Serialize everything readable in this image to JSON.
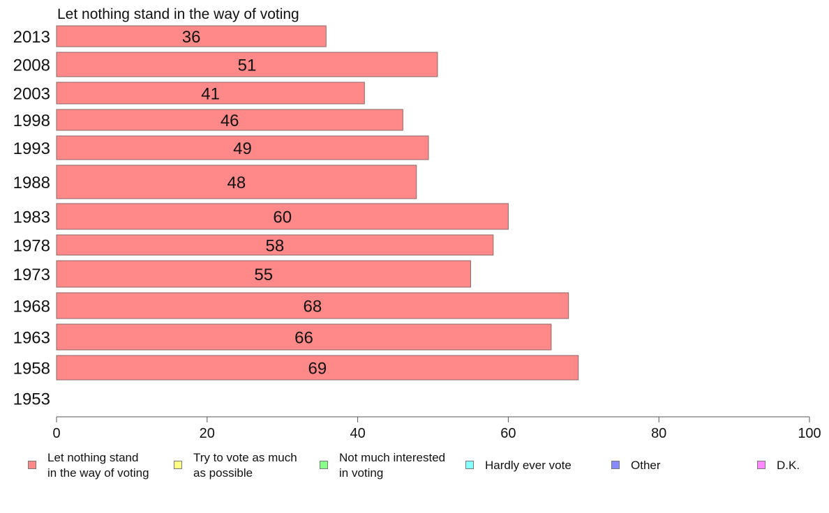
{
  "chart_data": {
    "type": "bar",
    "orientation": "horizontal",
    "title": "Let nothing stand in the way of voting",
    "categories": [
      "2013",
      "2008",
      "2003",
      "1998",
      "1993",
      "1988",
      "1983",
      "1978",
      "1973",
      "1968",
      "1963",
      "1958",
      "1953"
    ],
    "series": [
      {
        "name": "Let nothing stand\nin the way of voting",
        "color": "#ff8888",
        "values": [
          36,
          51,
          41,
          46,
          49,
          48,
          60,
          58,
          55,
          68,
          66,
          69,
          null
        ],
        "actual": [
          35.8,
          50.6,
          40.9,
          46.0,
          49.4,
          47.8,
          60.0,
          58.0,
          55.0,
          68.0,
          65.7,
          69.3,
          null
        ]
      }
    ],
    "xlim": [
      0,
      100
    ],
    "xticks": [
      "0",
      "20",
      "40",
      "60",
      "80",
      "100"
    ],
    "grid": false,
    "legend": {
      "placement": "bottom",
      "items": [
        {
          "label": "Let nothing stand\nin the way of voting",
          "color": "#ff8888"
        },
        {
          "label": "Try to vote as much\nas possible",
          "color": "#ffff88"
        },
        {
          "label": "Not much interested\nin voting",
          "color": "#88ff88"
        },
        {
          "label": "Hardly ever vote",
          "color": "#88ffff"
        },
        {
          "label": "Other",
          "color": "#8888ff"
        },
        {
          "label": "D.K.",
          "color": "#ff88ff"
        }
      ]
    }
  }
}
